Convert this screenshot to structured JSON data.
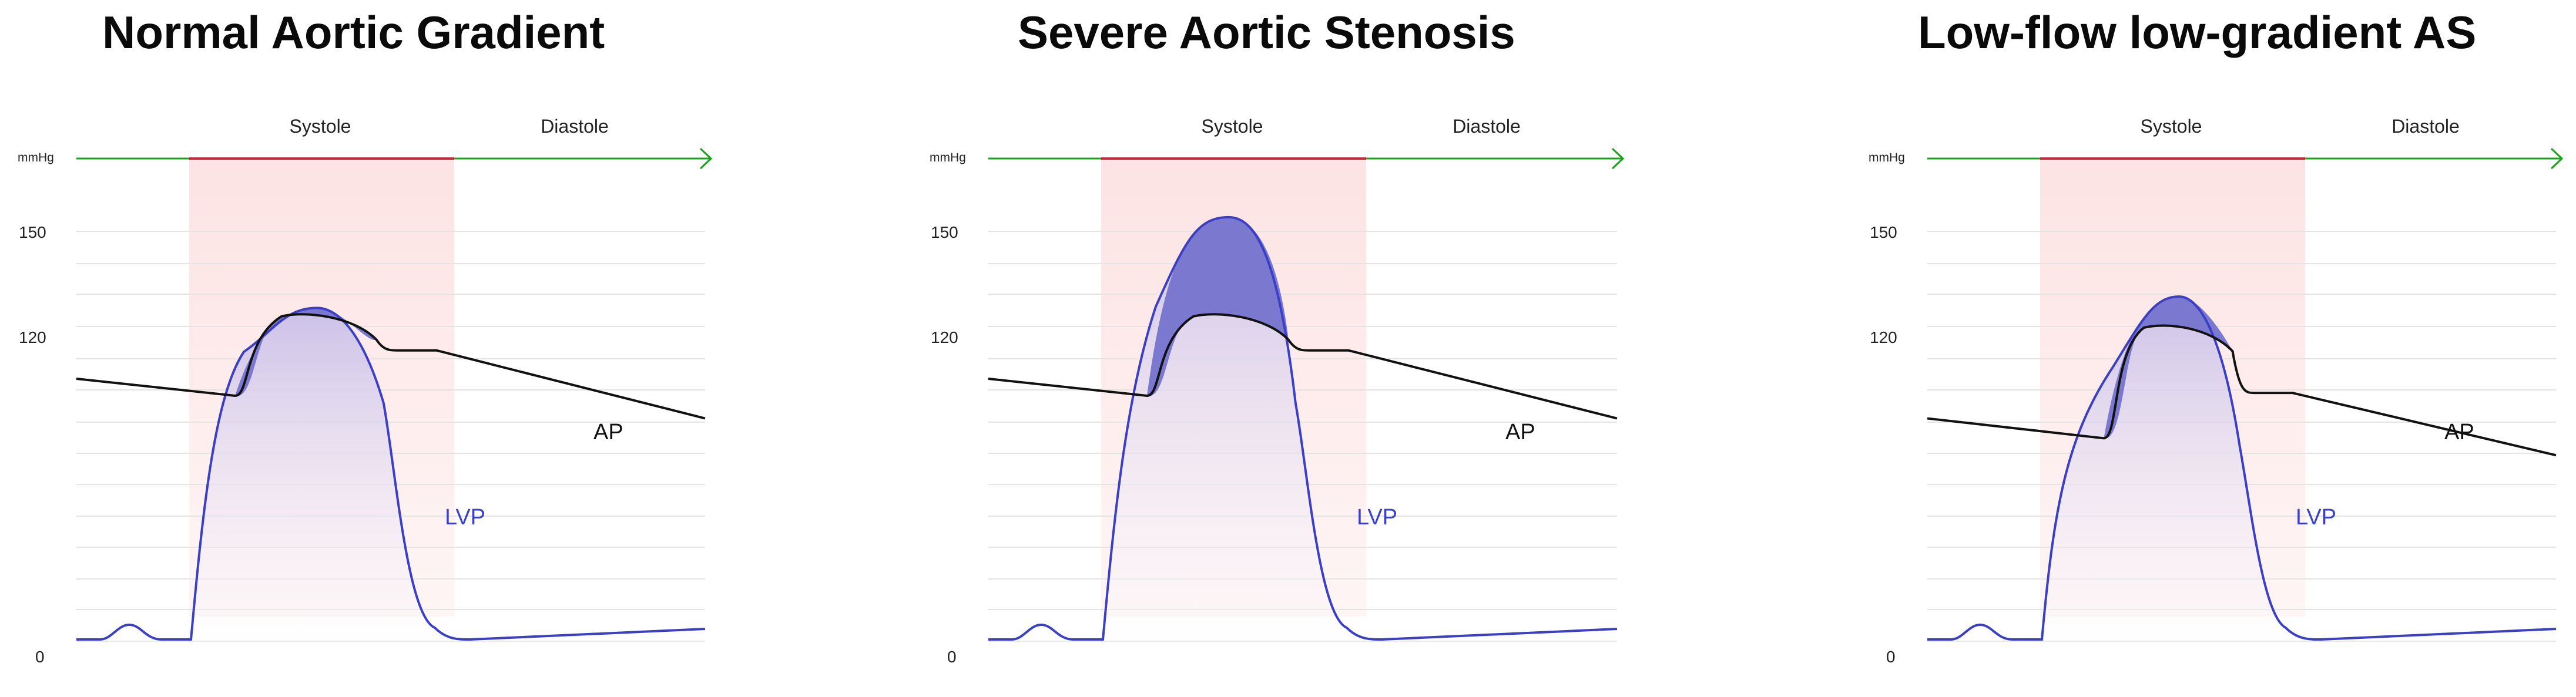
{
  "colors": {
    "systole_band": "#fde3e3",
    "systole_bar": "#c8283a",
    "time_axis": "#17a21a",
    "lvp": "#3b3fc4",
    "gradient_fill": "#7b78cf",
    "ap": "#111111",
    "grid": "#e4e4e4"
  },
  "panels": [
    {
      "title": "Normal Aortic Gradient",
      "phase_labels": {
        "systole": "Systole",
        "diastole": "Diastole"
      },
      "unit": "mmHg",
      "y_ticks": [
        "150",
        "120",
        "0"
      ],
      "ap_label": "AP",
      "lvp_label": "LVP",
      "shape": {
        "lvp_peak_mmHg": 123,
        "ap_peak_mmHg": 120,
        "ap_start_mmHg": 98,
        "ap_dip_mmHg": 92,
        "notch_mmHg": 108,
        "ap_end_mmHg": 84
      }
    },
    {
      "title": "Severe Aortic Stenosis",
      "phase_labels": {
        "systole": "Systole",
        "diastole": "Diastole"
      },
      "unit": "mmHg",
      "y_ticks": [
        "150",
        "120",
        "0"
      ],
      "ap_label": "AP",
      "lvp_label": "LVP",
      "shape": {
        "lvp_peak_mmHg": 155,
        "ap_peak_mmHg": 120,
        "ap_start_mmHg": 98,
        "ap_dip_mmHg": 92,
        "notch_mmHg": 108,
        "ap_end_mmHg": 84
      }
    },
    {
      "title": "Low-flow low-gradient AS",
      "phase_labels": {
        "systole": "Systole",
        "diastole": "Diastole"
      },
      "unit": "mmHg",
      "y_ticks": [
        "150",
        "120",
        "0"
      ],
      "ap_label": "AP",
      "lvp_label": "LVP",
      "shape": {
        "lvp_peak_mmHg": 127,
        "ap_peak_mmHg": 116,
        "ap_start_mmHg": 84,
        "ap_dip_mmHg": 77,
        "notch_mmHg": 93,
        "ap_end_mmHg": 71
      }
    }
  ]
}
